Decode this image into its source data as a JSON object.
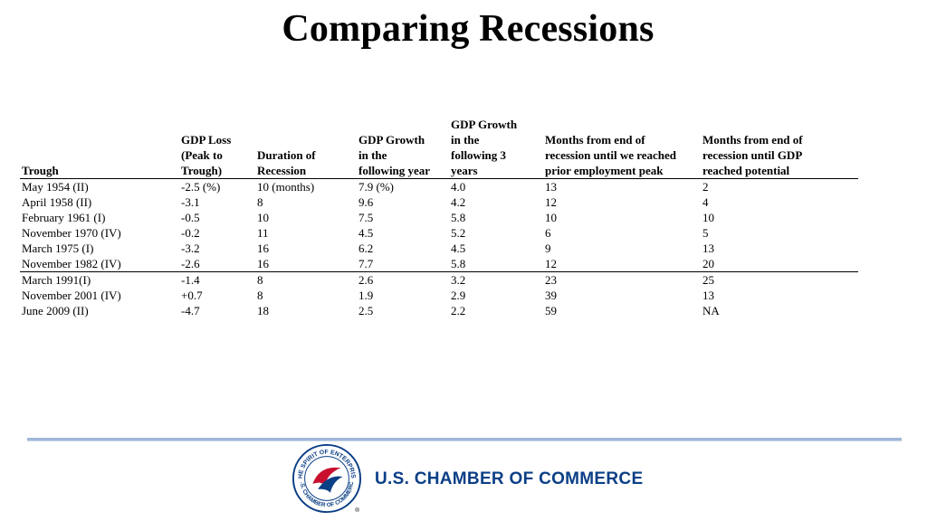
{
  "title": "Comparing Recessions",
  "table": {
    "headers": [
      "Trough",
      "GDP Loss\n(Peak to\nTrough)",
      "Duration of\nRecession",
      "GDP Growth\nin the\nfollowing year",
      "GDP Growth\nin the\nfollowing 3\nyears",
      "Months from end of\nrecession until we reached\nprior employment peak",
      "Months from end of\nrecession until GDP\nreached potential"
    ],
    "rows": [
      [
        "May 1954 (II)",
        "-2.5 (%)",
        "10 (months)",
        "7.9 (%)",
        "4.0",
        "13",
        "2"
      ],
      [
        "April 1958 (II)",
        "-3.1",
        "8",
        "9.6",
        "4.2",
        "12",
        "4"
      ],
      [
        "February 1961 (I)",
        "-0.5",
        "10",
        "7.5",
        "5.8",
        "10",
        "10"
      ],
      [
        "November 1970 (IV)",
        "-0.2",
        "11",
        "4.5",
        "5.2",
        "6",
        "5"
      ],
      [
        "March 1975 (I)",
        "-3.2",
        "16",
        "6.2",
        "4.5",
        "9",
        "13"
      ],
      [
        "November 1982 (IV)",
        "-2.6",
        "16",
        "7.7",
        "5.8",
        "12",
        "20"
      ],
      [
        "March 1991(I)",
        "-1.4",
        "8",
        "2.6",
        "3.2",
        "23",
        "25"
      ],
      [
        "November 2001 (IV)",
        "+0.7",
        "8",
        "1.9",
        "2.9",
        "39",
        "13"
      ],
      [
        "June 2009 (II)",
        "-4.7",
        "18",
        "2.5",
        "2.2",
        "59",
        "NA"
      ]
    ]
  },
  "footer": {
    "organization": "U.S. CHAMBER OF COMMERCE",
    "seal_text_top": "THE SPIRIT OF ENTERPRISE",
    "seal_text_bottom": "U.S. CHAMBER OF COMMERCE",
    "registered_mark": "®",
    "brand_blue": "#0b3f86",
    "brand_red": "#c8102e"
  }
}
